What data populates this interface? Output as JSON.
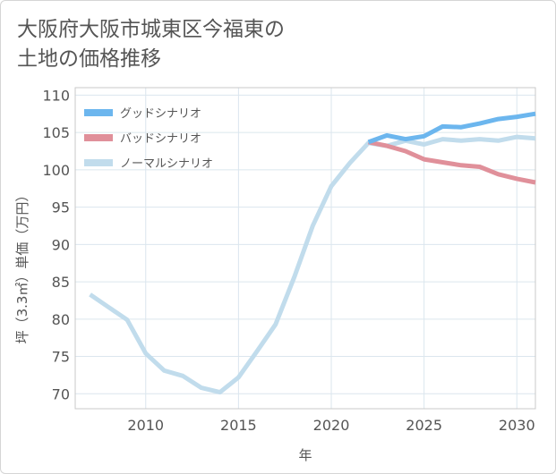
{
  "title_lines": [
    "大阪府大阪市城東区今福東の",
    "土地の価格推移"
  ],
  "chart_data": {
    "type": "line",
    "xlabel": "年",
    "ylabel": "坪（3.3㎡）単価（万円）",
    "xlim": [
      2006.2,
      2031
    ],
    "ylim": [
      68,
      111
    ],
    "xticks": [
      2010,
      2015,
      2020,
      2025,
      2030
    ],
    "yticks": [
      70,
      75,
      80,
      85,
      90,
      95,
      100,
      105,
      110
    ],
    "grid": true,
    "legend_position": "top-left",
    "series": [
      {
        "name": "グッドシナリオ",
        "color": "#6cb6ee",
        "x": [
          2022,
          2023,
          2024,
          2025,
          2026,
          2027,
          2028,
          2029,
          2030,
          2031
        ],
        "y": [
          103.7,
          104.6,
          104.1,
          104.5,
          105.8,
          105.7,
          106.2,
          106.8,
          107.1,
          107.5
        ]
      },
      {
        "name": "バッドシナリオ",
        "color": "#e0909a",
        "x": [
          2022,
          2023,
          2024,
          2025,
          2026,
          2027,
          2028,
          2029,
          2030,
          2031
        ],
        "y": [
          103.7,
          103.2,
          102.5,
          101.4,
          101.0,
          100.6,
          100.4,
          99.4,
          98.8,
          98.3
        ]
      },
      {
        "name": "ノーマルシナリオ",
        "color": "#c1dcec",
        "x": [
          2007,
          2008,
          2009,
          2010,
          2011,
          2012,
          2013,
          2014,
          2015,
          2016,
          2017,
          2018,
          2019,
          2020,
          2021,
          2022,
          2023,
          2024,
          2025,
          2026,
          2027,
          2028,
          2029,
          2030,
          2031
        ],
        "y": [
          83.3,
          81.6,
          79.9,
          75.4,
          73.1,
          72.4,
          70.8,
          70.2,
          72.2,
          75.7,
          79.3,
          85.6,
          92.5,
          97.8,
          100.9,
          103.6,
          103.2,
          103.9,
          103.4,
          104.1,
          103.9,
          104.1,
          103.9,
          104.4,
          104.2
        ]
      }
    ]
  }
}
